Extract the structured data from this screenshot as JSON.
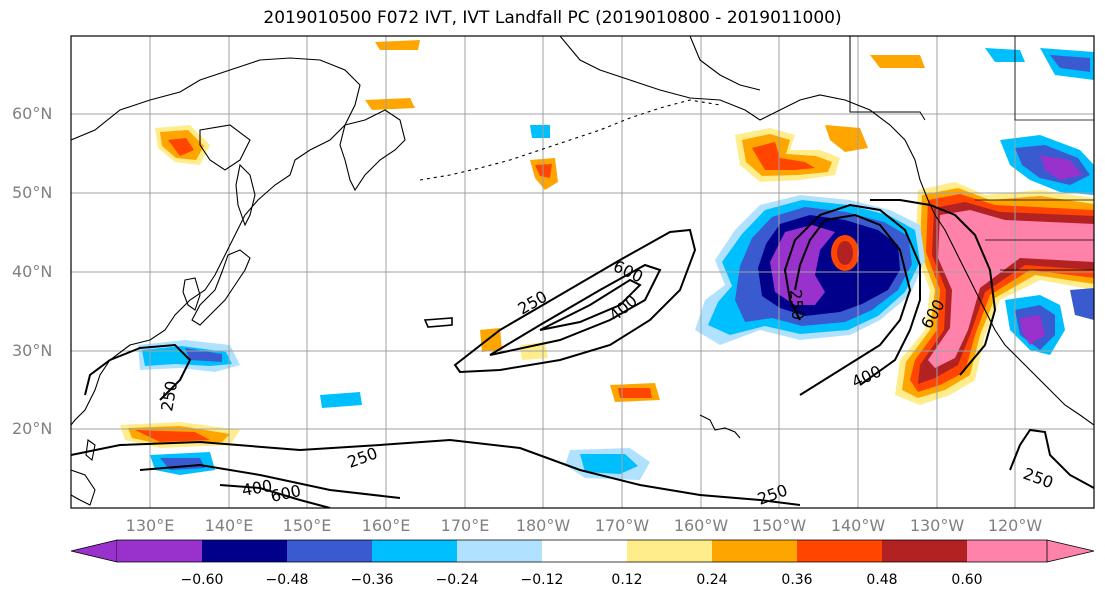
{
  "title": "2019010500 F072 IVT, IVT Landfall PC (2019010800 - 2019011000)",
  "map": {
    "lat_labels": [
      "60°N",
      "50°N",
      "40°N",
      "30°N",
      "20°N"
    ],
    "lon_labels": [
      "130°E",
      "140°E",
      "150°E",
      "160°E",
      "170°E",
      "180°W",
      "170°W",
      "160°W",
      "150°W",
      "140°W",
      "130°W",
      "120°W"
    ],
    "contour_labels": [
      "250",
      "400",
      "600",
      "250",
      "400",
      "600",
      "250",
      "250",
      "400",
      "600",
      "250",
      "250"
    ],
    "grid": true
  },
  "colorbar": {
    "ticks": [
      "−0.60",
      "−0.48",
      "−0.36",
      "−0.24",
      "−0.12",
      "0.12",
      "0.24",
      "0.36",
      "0.48",
      "0.60"
    ],
    "colors": [
      "#9932CC",
      "#00008B",
      "#3A5BCF",
      "#00BFFF",
      "#B0E2FF",
      "#FFFFFF",
      "#FFEC8B",
      "#FFA500",
      "#FF4500",
      "#B22222",
      "#FF82AB"
    ]
  }
}
